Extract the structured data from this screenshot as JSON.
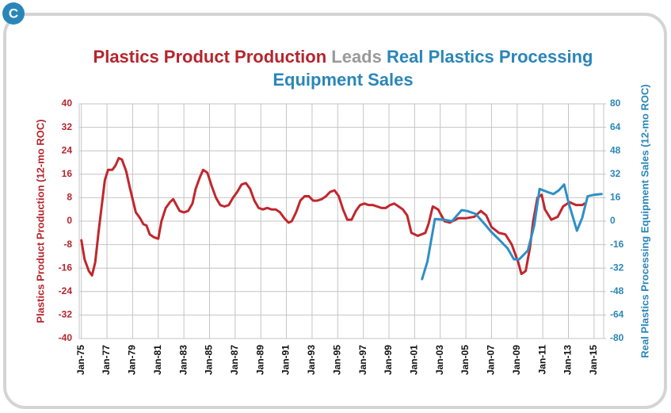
{
  "badge": "C",
  "chart_data": {
    "type": "line",
    "title_lines": [
      [
        {
          "text": "Plastics Product Production",
          "color": "#b5252d"
        },
        {
          "text": "Leads",
          "color": "#9a9a9a"
        },
        {
          "text": "Real Plastics Processing",
          "color": "#2a86b8"
        }
      ],
      [
        {
          "text": "Equipment Sales",
          "color": "#2a86b8"
        }
      ]
    ],
    "y_label": "Plastics Product Production (12-mo ROC)",
    "y2_label": "Real Plastics Processing Equipment Sales (12-mo ROC)",
    "y_label_color": "#b5252d",
    "y2_label_color": "#2a86b8",
    "grid": true,
    "xlim": [
      "1974-11",
      "2015-10"
    ],
    "xticks": [
      {
        "value": "1975-01",
        "label": "Jan-75"
      },
      {
        "value": "1977-01",
        "label": "Jan-77"
      },
      {
        "value": "1979-01",
        "label": "Jan-79"
      },
      {
        "value": "1981-01",
        "label": "Jan-81"
      },
      {
        "value": "1983-01",
        "label": "Jan-83"
      },
      {
        "value": "1985-01",
        "label": "Jan-85"
      },
      {
        "value": "1987-01",
        "label": "Jan-87"
      },
      {
        "value": "1989-01",
        "label": "Jan-89"
      },
      {
        "value": "1991-01",
        "label": "Jan-91"
      },
      {
        "value": "1993-01",
        "label": "Jan-93"
      },
      {
        "value": "1995-01",
        "label": "Jan-95"
      },
      {
        "value": "1997-01",
        "label": "Jan-97"
      },
      {
        "value": "1999-01",
        "label": "Jan-99"
      },
      {
        "value": "2001-01",
        "label": "Jan-01"
      },
      {
        "value": "2003-01",
        "label": "Jan-03"
      },
      {
        "value": "2005-01",
        "label": "Jan-05"
      },
      {
        "value": "2007-01",
        "label": "Jan-07"
      },
      {
        "value": "2009-01",
        "label": "Jan-09"
      },
      {
        "value": "2011-01",
        "label": "Jan-11"
      },
      {
        "value": "2013-01",
        "label": "Jan-13"
      },
      {
        "value": "2015-01",
        "label": "Jan-15"
      }
    ],
    "ylim": [
      -40,
      40
    ],
    "yticks": [
      -40,
      -32,
      -24,
      -16,
      -8,
      0,
      8,
      16,
      24,
      32,
      40
    ],
    "y2lim": [
      -80,
      80
    ],
    "y2ticks": [
      -80,
      -64,
      -48,
      -32,
      -16,
      0,
      16,
      32,
      48,
      64,
      80
    ],
    "series": [
      {
        "name": "Plastics Product Production",
        "color": "#c0272d",
        "axis": "y",
        "x": [
          "1975-01",
          "1975-04",
          "1975-08",
          "1975-11",
          "1976-02",
          "1976-05",
          "1976-08",
          "1976-11",
          "1977-02",
          "1977-06",
          "1977-09",
          "1977-12",
          "1978-03",
          "1978-07",
          "1978-10",
          "1979-01",
          "1979-04",
          "1979-08",
          "1979-11",
          "1980-02",
          "1980-05",
          "1980-09",
          "1981-01",
          "1981-04",
          "1981-08",
          "1981-12",
          "1982-03",
          "1982-06",
          "1982-09",
          "1983-01",
          "1983-05",
          "1983-09",
          "1983-12",
          "1984-04",
          "1984-07",
          "1984-11",
          "1985-03",
          "1985-07",
          "1985-11",
          "1986-03",
          "1986-07",
          "1986-11",
          "1987-03",
          "1987-07",
          "1987-11",
          "1988-03",
          "1988-07",
          "1988-11",
          "1989-03",
          "1989-07",
          "1989-11",
          "1990-03",
          "1990-07",
          "1990-11",
          "1991-03",
          "1991-06",
          "1991-10",
          "1992-02",
          "1992-06",
          "1992-10",
          "1993-02",
          "1993-06",
          "1993-10",
          "1994-02",
          "1994-06",
          "1994-10",
          "1995-02",
          "1995-06",
          "1995-10",
          "1996-02",
          "1996-06",
          "1996-10",
          "1997-02",
          "1997-06",
          "1997-10",
          "1998-02",
          "1998-06",
          "1998-10",
          "1999-02",
          "1999-06",
          "1999-10",
          "2000-02",
          "2000-06",
          "2000-10",
          "2001-04",
          "2001-11",
          "2002-02",
          "2002-06",
          "2002-11",
          "2003-05",
          "2003-10",
          "2004-06",
          "2005-01",
          "2005-09",
          "2006-03",
          "2006-08",
          "2007-01",
          "2007-08",
          "2008-02",
          "2008-08",
          "2009-02",
          "2009-05",
          "2009-09",
          "2010-01",
          "2010-04",
          "2010-08",
          "2010-12",
          "2011-03",
          "2011-09",
          "2012-03",
          "2012-08",
          "2013-02",
          "2013-08",
          "2014-02",
          "2014-04"
        ],
        "values": [
          -6.5,
          -13,
          -17,
          -18.5,
          -14,
          -4,
          5,
          14,
          17.5,
          17.5,
          19,
          21.5,
          21,
          17,
          12,
          7.5,
          3,
          1,
          -1,
          -1.5,
          -4.5,
          -5.5,
          -6,
          0,
          4.5,
          6.5,
          7.5,
          5.5,
          3.5,
          3,
          3.5,
          6,
          11,
          15,
          17.5,
          16.5,
          12,
          8,
          5.5,
          5,
          5.5,
          8,
          10,
          12.5,
          13,
          11,
          7,
          4.5,
          4,
          4.5,
          4,
          4,
          3,
          1,
          -0.5,
          0,
          3,
          7,
          8.5,
          8.5,
          7,
          7,
          7.5,
          8.5,
          10,
          10.5,
          8.5,
          4,
          0.5,
          0.5,
          3.5,
          5.5,
          6,
          5.5,
          5.5,
          5,
          4.5,
          4.5,
          5.5,
          6,
          5,
          4,
          2,
          -4,
          -5,
          -4,
          -1,
          5,
          4,
          0,
          -0.5,
          1,
          1,
          1.5,
          3.5,
          2,
          -2,
          -4,
          -4.5,
          -8,
          -14,
          -18,
          -17,
          -9,
          0,
          8,
          9,
          4,
          0.5,
          1.5,
          5,
          6.5,
          5.5,
          5.5,
          6
        ]
      },
      {
        "name": "Real Plastics Processing Equipment Sales",
        "color": "#2e8fc6",
        "axis": "y2",
        "x": [
          "2001-08",
          "2002-01",
          "2002-05",
          "2002-08",
          "2003-04",
          "2003-12",
          "2004-09",
          "2005-02",
          "2005-10",
          "2006-06",
          "2007-01",
          "2007-08",
          "2008-04",
          "2008-10",
          "2009-03",
          "2009-11",
          "2010-05",
          "2010-10",
          "2011-05",
          "2011-11",
          "2012-04",
          "2012-09",
          "2013-01",
          "2013-09",
          "2014-02",
          "2014-07",
          "2015-01",
          "2015-08"
        ],
        "values": [
          -39.5,
          -27.5,
          -11,
          1.5,
          1,
          0,
          7.5,
          7,
          5,
          -1.5,
          -7.5,
          -12.5,
          -18.5,
          -26,
          -26,
          -20,
          -3,
          22,
          20,
          18.5,
          21,
          25,
          13,
          -6.5,
          2.5,
          17,
          18,
          18.5
        ]
      }
    ]
  }
}
